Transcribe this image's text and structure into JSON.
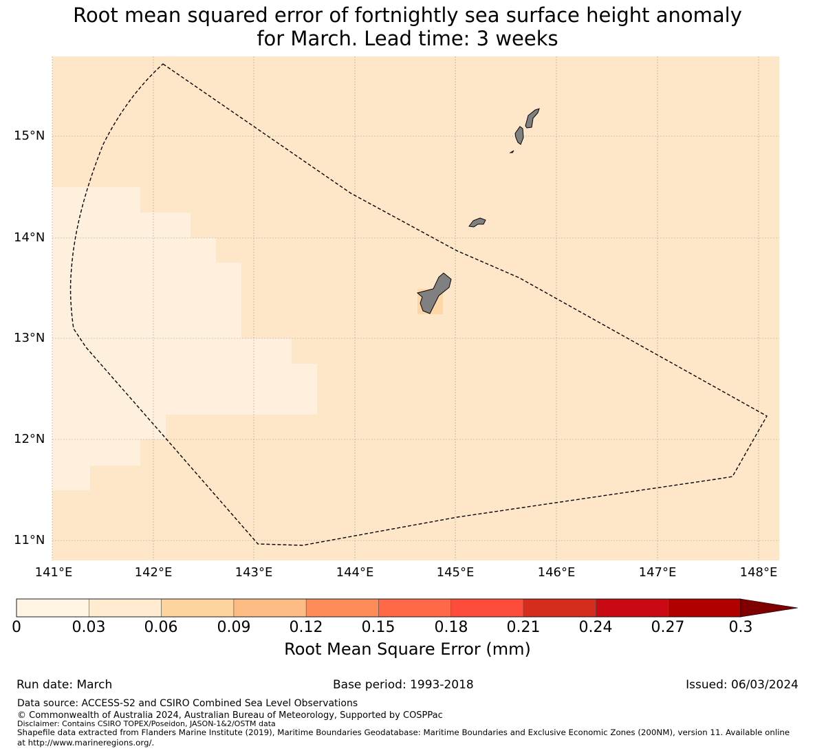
{
  "title": {
    "line1": "Root mean squared error of fortnightly sea surface height anomaly",
    "line2": "for March. Lead time: 3 weeks"
  },
  "map": {
    "lat_labels": [
      "15°N",
      "14°N",
      "13°N",
      "12°N",
      "11°N"
    ],
    "lon_labels": [
      "141°E",
      "142°E",
      "143°E",
      "144°E",
      "145°E",
      "146°E",
      "147°E",
      "148°E"
    ],
    "extent": {
      "lon_min": 140.99,
      "lon_max": 148.2,
      "lat_min": 10.8,
      "lat_max": 15.8
    },
    "background_color": "#fee6c8",
    "low_error_color": "#fff0de",
    "cell_color_near_guam": "#fdd8a6",
    "land_color": "#808080",
    "boundary_style": "dashed",
    "islands": [
      "Guam",
      "Rota",
      "Tinian",
      "Saipan",
      "Aguijan"
    ]
  },
  "colorbar": {
    "tick_labels": [
      "0",
      "0.03",
      "0.06",
      "0.09",
      "0.12",
      "0.15",
      "0.18",
      "0.21",
      "0.24",
      "0.27",
      "0.3"
    ],
    "colors": [
      "#fff3e2",
      "#feebd0",
      "#fdd49e",
      "#fdbb84",
      "#fc8d59",
      "#fe6847",
      "#fe4c3b",
      "#d62c1e",
      "#c90a14",
      "#b00000"
    ],
    "extend_color": "#7f0000",
    "label": "Root Mean Square Error (mm)"
  },
  "footer": {
    "run_date": "Run date: March",
    "base_period": "Base period: 1993-2018",
    "issued": "Issued: 06/03/2024",
    "data_source": "Data source: ACCESS-S2 and CSIRO Combined Sea Level Observations",
    "copyright": "© Commonwealth of Australia 2024, Australian Bureau of Meteorology, Supported by COSPPac",
    "disclaimer": "Disclaimer: Contains CSIRO TOPEX/Poseidon, JASON-1&2/OSTM data",
    "shapefile_line1": "Shapefile data extracted from Flanders Marine Institute (2019), Maritime Boundaries Geodatabase: Maritime Boundaries and Exclusive Economic Zones (200NM), version 11. Available online",
    "shapefile_line2": "at http://www.marineregions.org/."
  }
}
